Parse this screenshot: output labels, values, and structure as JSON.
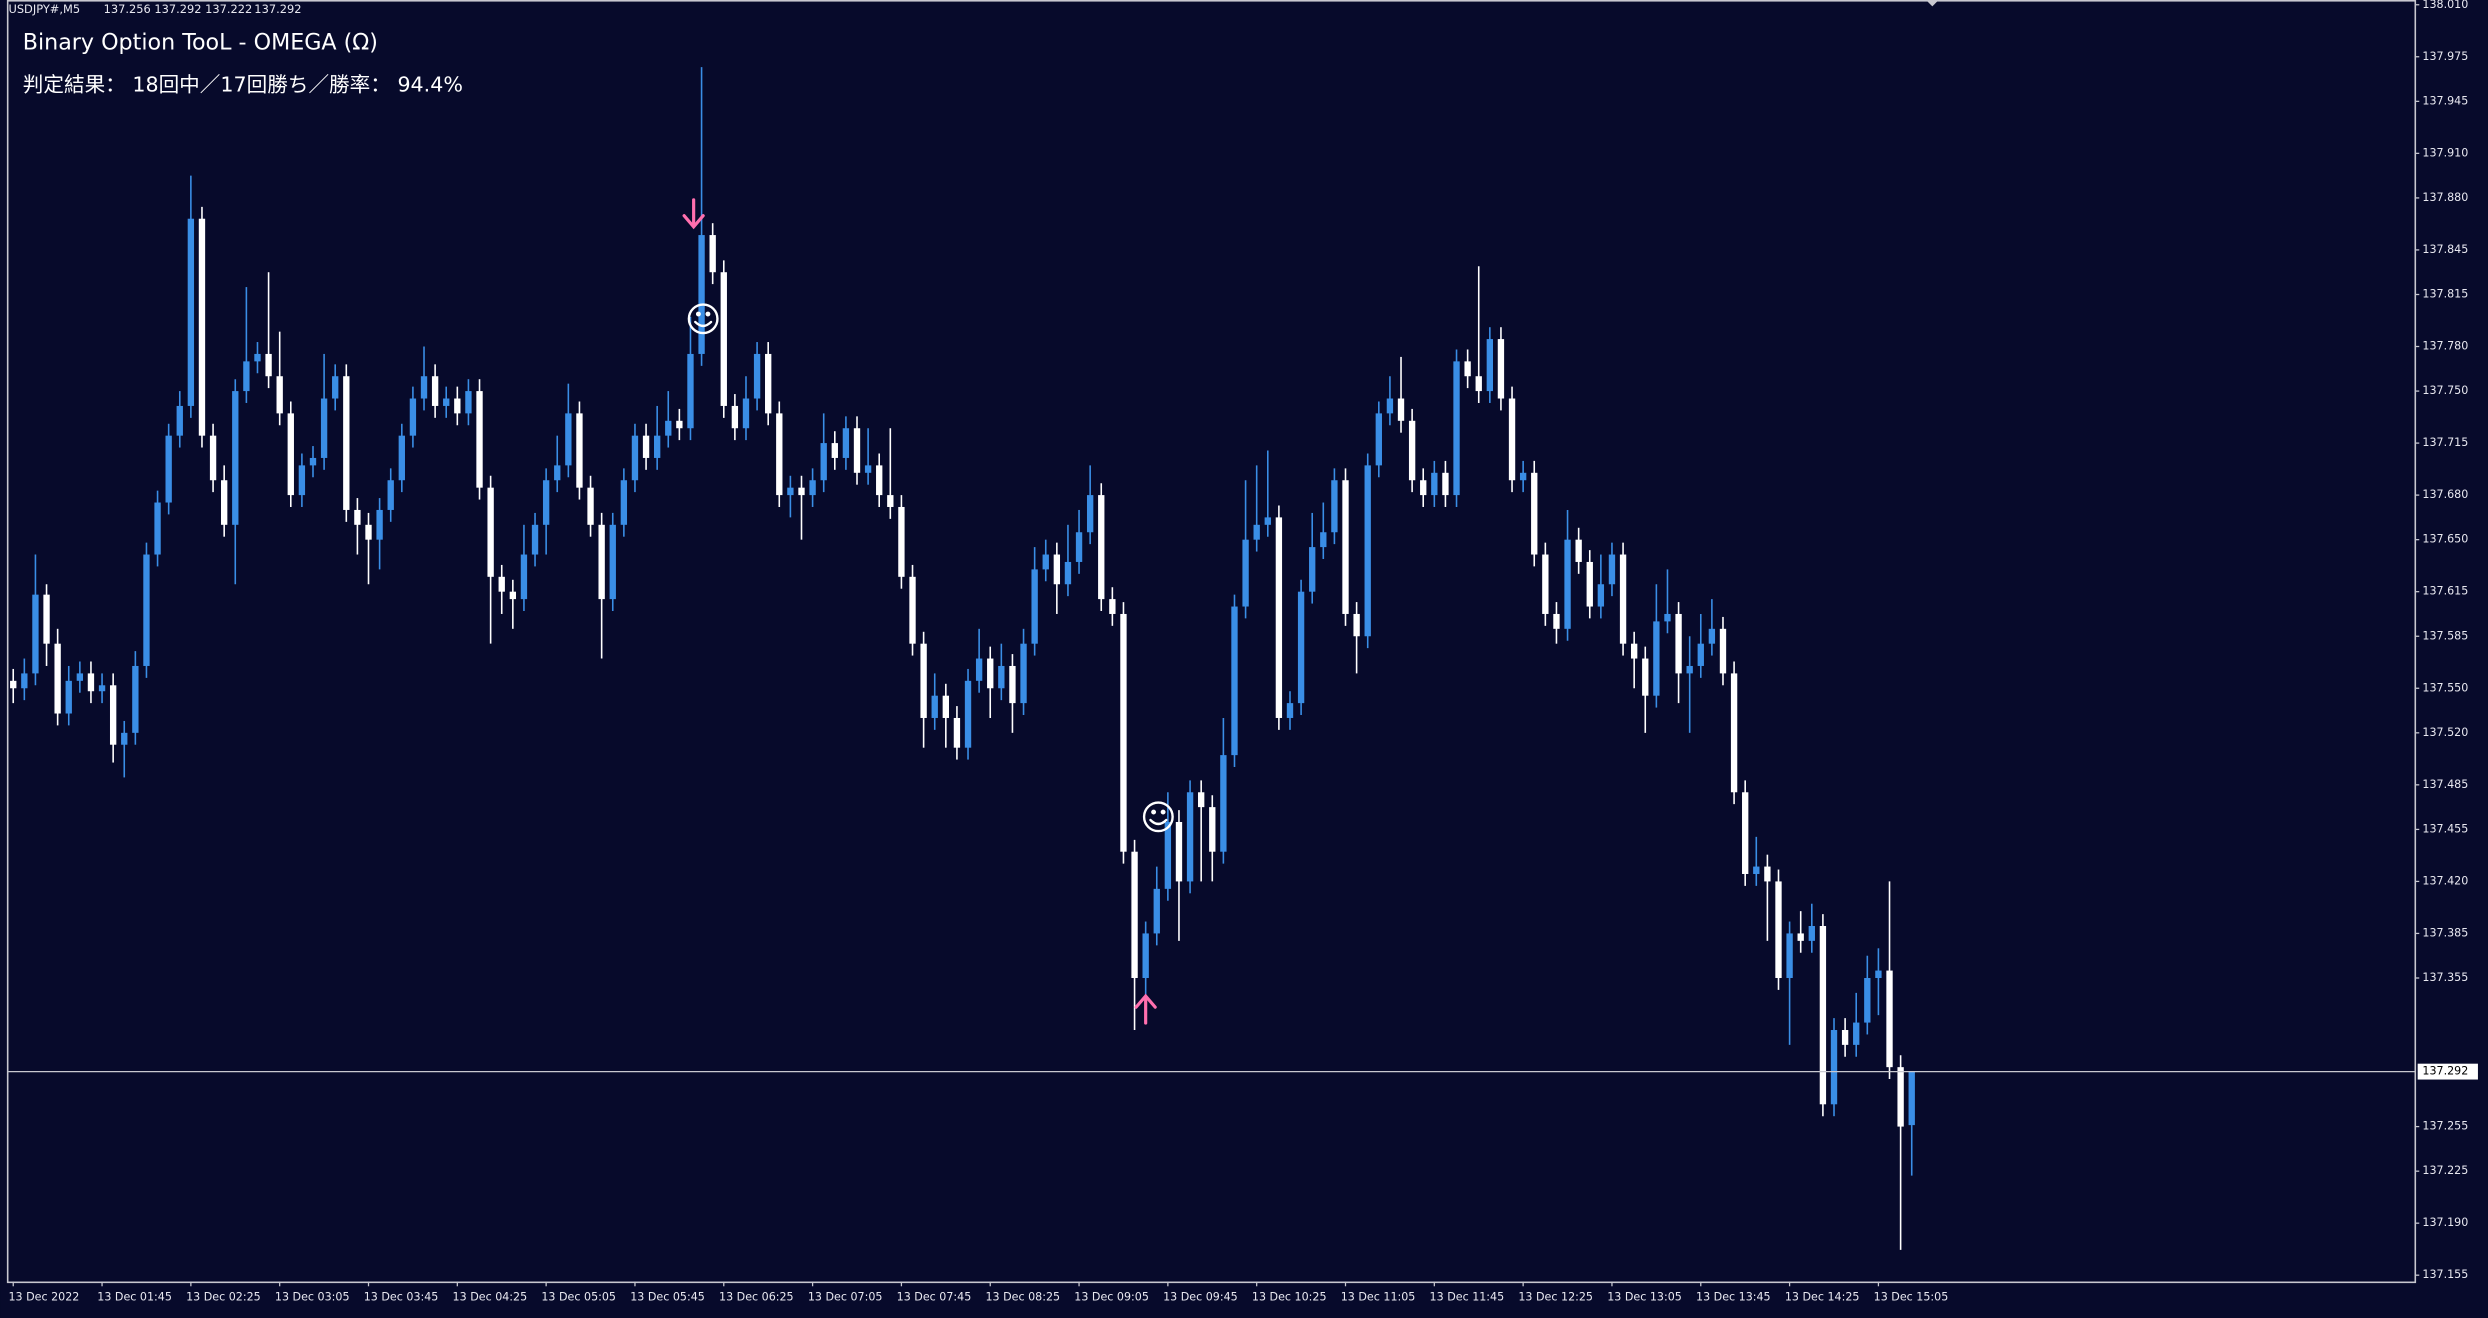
{
  "chart_data": {
    "type": "candlestick",
    "symbol": "USDJPY#,M5",
    "title": "Binary Option TooL - OMEGA (Ω)",
    "subtitle": "判定結果： 18回中／17回勝ち／勝率： 94.4%",
    "up_color": "#3a8ee6",
    "down_color": "#ffffff",
    "grid": false,
    "ylim": [
      137.155,
      138.01
    ],
    "yticks": [
      {
        "value": 138.01,
        "label": "138.010"
      },
      137.975,
      137.945,
      {
        "value": 137.91,
        "label": "137.910"
      },
      {
        "value": 137.88,
        "label": "137.880"
      },
      137.845,
      137.815,
      {
        "value": 137.78,
        "label": "137.780"
      },
      {
        "value": 137.75,
        "label": "137.750"
      },
      137.715,
      {
        "value": 137.68,
        "label": "137.680"
      },
      {
        "value": 137.65,
        "label": "137.650"
      },
      137.615,
      137.585,
      {
        "value": 137.55,
        "label": "137.550"
      },
      {
        "value": 137.52,
        "label": "137.520"
      },
      137.485,
      137.455,
      {
        "value": 137.42,
        "label": "137.420"
      },
      137.385,
      137.355,
      137.255,
      137.225,
      {
        "value": 137.19,
        "label": "137.190"
      },
      137.155
    ],
    "x": [
      "13 Dec 2022",
      null,
      null,
      null,
      null,
      null,
      null,
      null,
      "13 Dec 01:45",
      null,
      null,
      null,
      null,
      null,
      null,
      null,
      "13 Dec 02:25",
      null,
      null,
      null,
      null,
      null,
      null,
      null,
      "13 Dec 03:05",
      null,
      null,
      null,
      null,
      null,
      null,
      null,
      "13 Dec 03:45",
      null,
      null,
      null,
      null,
      null,
      null,
      null,
      "13 Dec 04:25",
      null,
      null,
      null,
      null,
      null,
      null,
      null,
      "13 Dec 05:05",
      null,
      null,
      null,
      null,
      null,
      null,
      null,
      "13 Dec 05:45",
      null,
      null,
      null,
      null,
      null,
      null,
      null,
      "13 Dec 06:25",
      null,
      null,
      null,
      null,
      null,
      null,
      null,
      "13 Dec 07:05",
      null,
      null,
      null,
      null,
      null,
      null,
      null,
      "13 Dec 07:45",
      null,
      null,
      null,
      null,
      null,
      null,
      null,
      "13 Dec 08:25",
      null,
      null,
      null,
      null,
      null,
      null,
      null,
      "13 Dec 09:05",
      null,
      null,
      null,
      null,
      null,
      null,
      null,
      "13 Dec 09:45",
      null,
      null,
      null,
      null,
      null,
      null,
      null,
      "13 Dec 10:25",
      null,
      null,
      null,
      null,
      null,
      null,
      null,
      "13 Dec 11:05",
      null,
      null,
      null,
      null,
      null,
      null,
      null,
      "13 Dec 11:45",
      null,
      null,
      null,
      null,
      null,
      null,
      null,
      "13 Dec 12:25",
      null,
      null,
      null,
      null,
      null,
      null,
      null,
      "13 Dec 13:05",
      null,
      null,
      null,
      null,
      null,
      null,
      null,
      "13 Dec 13:45",
      null,
      null,
      null,
      null,
      null,
      null,
      null,
      "13 Dec 14:25",
      null,
      null,
      null,
      null,
      null,
      null,
      null,
      "13 Dec 15:05",
      null,
      null,
      null
    ],
    "candles": [
      [
        137.555,
        137.563,
        137.54,
        137.55
      ],
      [
        137.55,
        137.57,
        137.542,
        137.56
      ],
      [
        137.56,
        137.64,
        137.552,
        137.613
      ],
      [
        137.613,
        137.62,
        137.565,
        137.58
      ],
      [
        137.58,
        137.59,
        137.525,
        137.533
      ],
      [
        137.533,
        137.565,
        137.525,
        137.555
      ],
      [
        137.555,
        137.568,
        137.547,
        137.56
      ],
      [
        137.56,
        137.568,
        137.54,
        137.548
      ],
      [
        137.548,
        137.56,
        137.54,
        137.552
      ],
      [
        137.552,
        137.56,
        137.5,
        137.512
      ],
      [
        137.512,
        137.528,
        137.49,
        137.52
      ],
      [
        137.52,
        137.575,
        137.512,
        137.565
      ],
      [
        137.565,
        137.648,
        137.557,
        137.64
      ],
      [
        137.64,
        137.683,
        137.632,
        137.675
      ],
      [
        137.675,
        137.728,
        137.667,
        137.72
      ],
      [
        137.72,
        137.75,
        137.712,
        137.74
      ],
      [
        137.74,
        137.895,
        137.732,
        137.866
      ],
      [
        137.866,
        137.874,
        137.712,
        137.72
      ],
      [
        137.72,
        137.728,
        137.682,
        137.69
      ],
      [
        137.69,
        137.7,
        137.652,
        137.66
      ],
      [
        137.66,
        137.758,
        137.62,
        137.75
      ],
      [
        137.75,
        137.82,
        137.742,
        137.77
      ],
      [
        137.77,
        137.783,
        137.762,
        137.775
      ],
      [
        137.775,
        137.83,
        137.752,
        137.76
      ],
      [
        137.76,
        137.79,
        137.727,
        137.735
      ],
      [
        137.735,
        137.743,
        137.672,
        137.68
      ],
      [
        137.68,
        137.708,
        137.672,
        137.7
      ],
      [
        137.7,
        137.713,
        137.692,
        137.705
      ],
      [
        137.705,
        137.775,
        137.697,
        137.745
      ],
      [
        137.745,
        137.768,
        137.737,
        137.76
      ],
      [
        137.76,
        137.768,
        137.662,
        137.67
      ],
      [
        137.67,
        137.678,
        137.64,
        137.66
      ],
      [
        137.66,
        137.668,
        137.62,
        137.65
      ],
      [
        137.65,
        137.678,
        137.63,
        137.67
      ],
      [
        137.67,
        137.698,
        137.662,
        137.69
      ],
      [
        137.69,
        137.728,
        137.682,
        137.72
      ],
      [
        137.72,
        137.753,
        137.712,
        137.745
      ],
      [
        137.745,
        137.78,
        137.737,
        137.76
      ],
      [
        137.76,
        137.768,
        137.732,
        137.74
      ],
      [
        137.74,
        137.753,
        137.732,
        137.745
      ],
      [
        137.745,
        137.753,
        137.727,
        137.735
      ],
      [
        137.735,
        137.758,
        137.727,
        137.75
      ],
      [
        137.75,
        137.758,
        137.677,
        137.685
      ],
      [
        137.685,
        137.693,
        137.58,
        137.625
      ],
      [
        137.625,
        137.633,
        137.6,
        137.615
      ],
      [
        137.615,
        137.623,
        137.59,
        137.61
      ],
      [
        137.61,
        137.66,
        137.602,
        137.64
      ],
      [
        137.64,
        137.668,
        137.632,
        137.66
      ],
      [
        137.66,
        137.698,
        137.64,
        137.69
      ],
      [
        137.69,
        137.72,
        137.682,
        137.7
      ],
      [
        137.7,
        137.755,
        137.692,
        137.735
      ],
      [
        137.735,
        137.743,
        137.677,
        137.685
      ],
      [
        137.685,
        137.693,
        137.652,
        137.66
      ],
      [
        137.66,
        137.668,
        137.57,
        137.61
      ],
      [
        137.61,
        137.668,
        137.602,
        137.66
      ],
      [
        137.66,
        137.698,
        137.652,
        137.69
      ],
      [
        137.69,
        137.728,
        137.682,
        137.72
      ],
      [
        137.72,
        137.728,
        137.697,
        137.705
      ],
      [
        137.705,
        137.74,
        137.697,
        137.72
      ],
      [
        137.72,
        137.75,
        137.712,
        137.73
      ],
      [
        137.73,
        137.738,
        137.717,
        137.725
      ],
      [
        137.725,
        137.8,
        137.717,
        137.775
      ],
      [
        137.775,
        137.968,
        137.767,
        137.855
      ],
      [
        137.855,
        137.863,
        137.822,
        137.83
      ],
      [
        137.83,
        137.838,
        137.732,
        137.74
      ],
      [
        137.74,
        137.748,
        137.717,
        137.725
      ],
      [
        137.725,
        137.76,
        137.717,
        137.745
      ],
      [
        137.745,
        137.783,
        137.737,
        137.775
      ],
      [
        137.775,
        137.783,
        137.727,
        137.735
      ],
      [
        137.735,
        137.743,
        137.672,
        137.68
      ],
      [
        137.68,
        137.693,
        137.665,
        137.685
      ],
      [
        137.685,
        137.693,
        137.65,
        137.68
      ],
      [
        137.68,
        137.698,
        137.672,
        137.69
      ],
      [
        137.69,
        137.735,
        137.682,
        137.715
      ],
      [
        137.715,
        137.723,
        137.697,
        137.705
      ],
      [
        137.705,
        137.733,
        137.697,
        137.725
      ],
      [
        137.725,
        137.733,
        137.687,
        137.695
      ],
      [
        137.695,
        137.725,
        137.687,
        137.7
      ],
      [
        137.7,
        137.708,
        137.672,
        137.68
      ],
      [
        137.68,
        137.725,
        137.664,
        137.672
      ],
      [
        137.672,
        137.68,
        137.617,
        137.625
      ],
      [
        137.625,
        137.633,
        137.572,
        137.58
      ],
      [
        137.58,
        137.588,
        137.51,
        137.53
      ],
      [
        137.53,
        137.56,
        137.522,
        137.545
      ],
      [
        137.545,
        137.553,
        137.51,
        137.53
      ],
      [
        137.53,
        137.538,
        137.502,
        137.51
      ],
      [
        137.51,
        137.563,
        137.502,
        137.555
      ],
      [
        137.555,
        137.59,
        137.547,
        137.57
      ],
      [
        137.57,
        137.578,
        137.53,
        137.55
      ],
      [
        137.55,
        137.58,
        137.542,
        137.565
      ],
      [
        137.565,
        137.573,
        137.52,
        137.54
      ],
      [
        137.54,
        137.59,
        137.532,
        137.58
      ],
      [
        137.58,
        137.645,
        137.572,
        137.63
      ],
      [
        137.63,
        137.65,
        137.622,
        137.64
      ],
      [
        137.64,
        137.648,
        137.6,
        137.62
      ],
      [
        137.62,
        137.66,
        137.612,
        137.635
      ],
      [
        137.635,
        137.67,
        137.627,
        137.655
      ],
      [
        137.655,
        137.7,
        137.647,
        137.68
      ],
      [
        137.68,
        137.688,
        137.602,
        137.61
      ],
      [
        137.61,
        137.618,
        137.592,
        137.6
      ],
      [
        137.6,
        137.608,
        137.432,
        137.44
      ],
      [
        137.44,
        137.448,
        137.32,
        137.355
      ],
      [
        137.355,
        137.393,
        137.335,
        137.385
      ],
      [
        137.385,
        137.43,
        137.377,
        137.415
      ],
      [
        137.415,
        137.48,
        137.407,
        137.46
      ],
      [
        137.46,
        137.468,
        137.38,
        137.42
      ],
      [
        137.42,
        137.488,
        137.412,
        137.48
      ],
      [
        137.48,
        137.488,
        137.42,
        137.47
      ],
      [
        137.47,
        137.478,
        137.42,
        137.44
      ],
      [
        137.44,
        137.53,
        137.432,
        137.505
      ],
      [
        137.505,
        137.613,
        137.497,
        137.605
      ],
      [
        137.605,
        137.69,
        137.597,
        137.65
      ],
      [
        137.65,
        137.7,
        137.642,
        137.66
      ],
      [
        137.66,
        137.71,
        137.652,
        137.665
      ],
      [
        137.665,
        137.673,
        137.522,
        137.53
      ],
      [
        137.53,
        137.548,
        137.522,
        137.54
      ],
      [
        137.54,
        137.623,
        137.532,
        137.615
      ],
      [
        137.615,
        137.668,
        137.607,
        137.645
      ],
      [
        137.645,
        137.675,
        137.637,
        137.655
      ],
      [
        137.655,
        137.698,
        137.647,
        137.69
      ],
      [
        137.69,
        137.698,
        137.592,
        137.6
      ],
      [
        137.6,
        137.608,
        137.56,
        137.585
      ],
      [
        137.585,
        137.708,
        137.577,
        137.7
      ],
      [
        137.7,
        137.743,
        137.692,
        137.735
      ],
      [
        137.735,
        137.76,
        137.727,
        137.745
      ],
      [
        137.745,
        137.773,
        137.722,
        137.73
      ],
      [
        137.73,
        137.738,
        137.682,
        137.69
      ],
      [
        137.69,
        137.698,
        137.672,
        137.68
      ],
      [
        137.68,
        137.703,
        137.672,
        137.695
      ],
      [
        137.695,
        137.703,
        137.672,
        137.68
      ],
      [
        137.68,
        137.778,
        137.672,
        137.77
      ],
      [
        137.77,
        137.778,
        137.752,
        137.76
      ],
      [
        137.76,
        137.834,
        137.742,
        137.75
      ],
      [
        137.75,
        137.793,
        137.742,
        137.785
      ],
      [
        137.785,
        137.793,
        137.737,
        137.745
      ],
      [
        137.745,
        137.753,
        137.682,
        137.69
      ],
      [
        137.69,
        137.703,
        137.682,
        137.695
      ],
      [
        137.695,
        137.703,
        137.632,
        137.64
      ],
      [
        137.64,
        137.648,
        137.592,
        137.6
      ],
      [
        137.6,
        137.608,
        137.58,
        137.59
      ],
      [
        137.59,
        137.67,
        137.582,
        137.65
      ],
      [
        137.65,
        137.658,
        137.627,
        137.635
      ],
      [
        137.635,
        137.643,
        137.597,
        137.605
      ],
      [
        137.605,
        137.64,
        137.597,
        137.62
      ],
      [
        137.62,
        137.648,
        137.612,
        137.64
      ],
      [
        137.64,
        137.648,
        137.572,
        137.58
      ],
      [
        137.58,
        137.588,
        137.55,
        137.57
      ],
      [
        137.57,
        137.578,
        137.52,
        137.545
      ],
      [
        137.545,
        137.62,
        137.537,
        137.595
      ],
      [
        137.595,
        137.63,
        137.587,
        137.6
      ],
      [
        137.6,
        137.608,
        137.54,
        137.56
      ],
      [
        137.56,
        137.585,
        137.52,
        137.565
      ],
      [
        137.565,
        137.6,
        137.557,
        137.58
      ],
      [
        137.58,
        137.61,
        137.572,
        137.59
      ],
      [
        137.59,
        137.598,
        137.552,
        137.56
      ],
      [
        137.56,
        137.568,
        137.472,
        137.48
      ],
      [
        137.48,
        137.488,
        137.417,
        137.425
      ],
      [
        137.425,
        137.45,
        137.417,
        137.43
      ],
      [
        137.43,
        137.438,
        137.38,
        137.42
      ],
      [
        137.42,
        137.428,
        137.347,
        137.355
      ],
      [
        137.355,
        137.393,
        137.31,
        137.385
      ],
      [
        137.385,
        137.4,
        137.372,
        137.38
      ],
      [
        137.38,
        137.405,
        137.372,
        137.39
      ],
      [
        137.39,
        137.398,
        137.262,
        137.27
      ],
      [
        137.27,
        137.328,
        137.262,
        137.32
      ],
      [
        137.32,
        137.328,
        137.302,
        137.31
      ],
      [
        137.31,
        137.345,
        137.302,
        137.325
      ],
      [
        137.325,
        137.37,
        137.317,
        137.355
      ],
      [
        137.355,
        137.375,
        137.33,
        137.36
      ],
      [
        137.36,
        137.42,
        137.287,
        137.295
      ],
      [
        137.295,
        137.303,
        137.172,
        137.255
      ],
      [
        137.256,
        137.292,
        137.222,
        137.292
      ]
    ]
  }
}
